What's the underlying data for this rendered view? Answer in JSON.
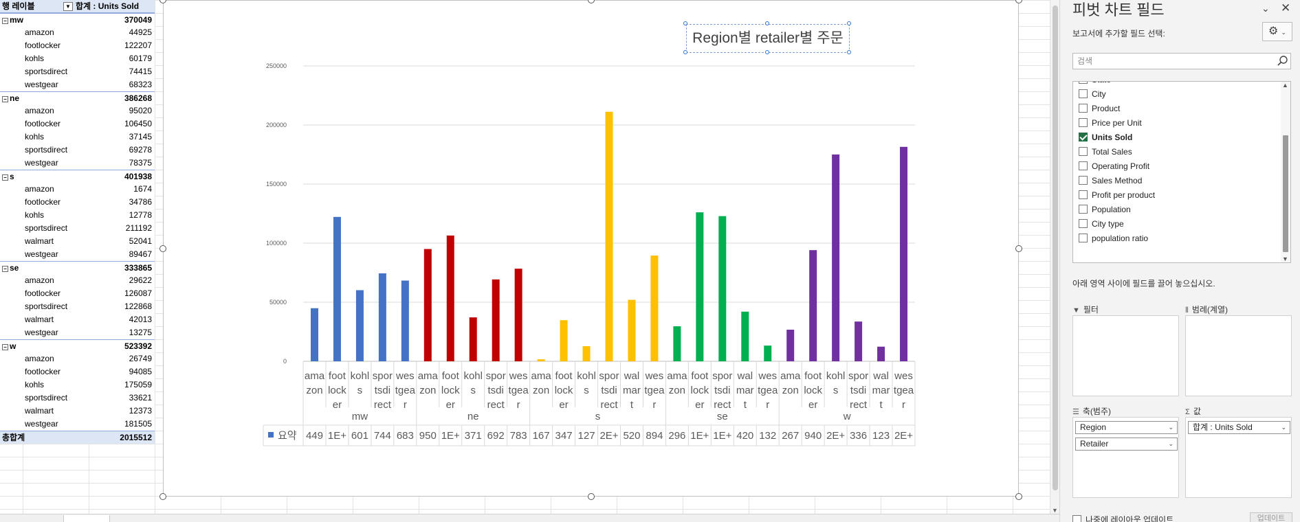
{
  "pivot": {
    "header_label": "행 레이블",
    "header_value": "합계 : Units Sold",
    "regions": [
      {
        "name": "mw",
        "total": "370049",
        "items": [
          {
            "name": "amazon",
            "value": "44925"
          },
          {
            "name": "footlocker",
            "value": "122207"
          },
          {
            "name": "kohls",
            "value": "60179"
          },
          {
            "name": "sportsdirect",
            "value": "74415"
          },
          {
            "name": "westgear",
            "value": "68323"
          }
        ]
      },
      {
        "name": "ne",
        "total": "386268",
        "items": [
          {
            "name": "amazon",
            "value": "95020"
          },
          {
            "name": "footlocker",
            "value": "106450"
          },
          {
            "name": "kohls",
            "value": "37145"
          },
          {
            "name": "sportsdirect",
            "value": "69278"
          },
          {
            "name": "westgear",
            "value": "78375"
          }
        ]
      },
      {
        "name": "s",
        "total": "401938",
        "items": [
          {
            "name": "amazon",
            "value": "1674"
          },
          {
            "name": "footlocker",
            "value": "34786"
          },
          {
            "name": "kohls",
            "value": "12778"
          },
          {
            "name": "sportsdirect",
            "value": "211192"
          },
          {
            "name": "walmart",
            "value": "52041"
          },
          {
            "name": "westgear",
            "value": "89467"
          }
        ]
      },
      {
        "name": "se",
        "total": "333865",
        "items": [
          {
            "name": "amazon",
            "value": "29622"
          },
          {
            "name": "footlocker",
            "value": "126087"
          },
          {
            "name": "sportsdirect",
            "value": "122868"
          },
          {
            "name": "walmart",
            "value": "42013"
          },
          {
            "name": "westgear",
            "value": "13275"
          }
        ]
      },
      {
        "name": "w",
        "total": "523392",
        "items": [
          {
            "name": "amazon",
            "value": "26749"
          },
          {
            "name": "footlocker",
            "value": "94085"
          },
          {
            "name": "kohls",
            "value": "175059"
          },
          {
            "name": "sportsdirect",
            "value": "33621"
          },
          {
            "name": "walmart",
            "value": "12373"
          },
          {
            "name": "westgear",
            "value": "181505"
          }
        ]
      }
    ],
    "grand_total_label": "총합계",
    "grand_total_value": "2015512"
  },
  "chart_data": {
    "type": "bar",
    "title": "Region별 retailer별 주문",
    "ylim": [
      0,
      250000
    ],
    "yticks": [
      "0",
      "50000",
      "100000",
      "150000",
      "200000",
      "250000"
    ],
    "grid": true,
    "legend_position": "right",
    "groups": [
      {
        "name": "mw",
        "color": "#4472c4",
        "categories": [
          {
            "label": "amazon",
            "wrap": [
              "ama",
              "zon"
            ],
            "value": 44925,
            "table": "449"
          },
          {
            "label": "footlocker",
            "wrap": [
              "foot",
              "lock",
              "er"
            ],
            "value": 122207,
            "table": "1E+"
          },
          {
            "label": "kohls",
            "wrap": [
              "kohl",
              "s"
            ],
            "value": 60179,
            "table": "601"
          },
          {
            "label": "sportsdirect",
            "wrap": [
              "spor",
              "tsdi",
              "rect"
            ],
            "value": 74415,
            "table": "744"
          },
          {
            "label": "westgear",
            "wrap": [
              "wes",
              "tgea",
              "r"
            ],
            "value": 68323,
            "table": "683"
          }
        ]
      },
      {
        "name": "ne",
        "color": "#c00000",
        "categories": [
          {
            "label": "amazon",
            "wrap": [
              "ama",
              "zon"
            ],
            "value": 95020,
            "table": "950"
          },
          {
            "label": "footlocker",
            "wrap": [
              "foot",
              "lock",
              "er"
            ],
            "value": 106450,
            "table": "1E+"
          },
          {
            "label": "kohls",
            "wrap": [
              "kohl",
              "s"
            ],
            "value": 37145,
            "table": "371"
          },
          {
            "label": "sportsdirect",
            "wrap": [
              "spor",
              "tsdi",
              "rect"
            ],
            "value": 69278,
            "table": "692"
          },
          {
            "label": "westgear",
            "wrap": [
              "wes",
              "tgea",
              "r"
            ],
            "value": 78375,
            "table": "783"
          }
        ]
      },
      {
        "name": "s",
        "color": "#ffc000",
        "categories": [
          {
            "label": "amazon",
            "wrap": [
              "ama",
              "zon"
            ],
            "value": 1674,
            "table": "167"
          },
          {
            "label": "footlocker",
            "wrap": [
              "foot",
              "lock",
              "er"
            ],
            "value": 34786,
            "table": "347"
          },
          {
            "label": "kohls",
            "wrap": [
              "kohl",
              "s"
            ],
            "value": 12778,
            "table": "127"
          },
          {
            "label": "sportsdirect",
            "wrap": [
              "spor",
              "tsdi",
              "rect"
            ],
            "value": 211192,
            "table": "2E+"
          },
          {
            "label": "walmart",
            "wrap": [
              "wal",
              "mar",
              "t"
            ],
            "value": 52041,
            "table": "520"
          },
          {
            "label": "westgear",
            "wrap": [
              "wes",
              "tgea",
              "r"
            ],
            "value": 89467,
            "table": "894"
          }
        ]
      },
      {
        "name": "se",
        "color": "#00b050",
        "categories": [
          {
            "label": "amazon",
            "wrap": [
              "ama",
              "zon"
            ],
            "value": 29622,
            "table": "296"
          },
          {
            "label": "footlocker",
            "wrap": [
              "foot",
              "lock",
              "er"
            ],
            "value": 126087,
            "table": "1E+"
          },
          {
            "label": "sportsdirect",
            "wrap": [
              "spor",
              "tsdi",
              "rect"
            ],
            "value": 122868,
            "table": "1E+"
          },
          {
            "label": "walmart",
            "wrap": [
              "wal",
              "mar",
              "t"
            ],
            "value": 42013,
            "table": "420"
          },
          {
            "label": "westgear",
            "wrap": [
              "wes",
              "tgea",
              "r"
            ],
            "value": 13275,
            "table": "132"
          }
        ]
      },
      {
        "name": "w",
        "color": "#7030a0",
        "categories": [
          {
            "label": "amazon",
            "wrap": [
              "ama",
              "zon"
            ],
            "value": 26749,
            "table": "267"
          },
          {
            "label": "footlocker",
            "wrap": [
              "foot",
              "lock",
              "er"
            ],
            "value": 94085,
            "table": "940"
          },
          {
            "label": "kohls",
            "wrap": [
              "kohl",
              "s"
            ],
            "value": 175059,
            "table": "2E+"
          },
          {
            "label": "sportsdirect",
            "wrap": [
              "spor",
              "tsdi",
              "rect"
            ],
            "value": 33621,
            "table": "336"
          },
          {
            "label": "walmart",
            "wrap": [
              "wal",
              "mar",
              "t"
            ],
            "value": 12373,
            "table": "123"
          },
          {
            "label": "westgear",
            "wrap": [
              "wes",
              "tgea",
              "r"
            ],
            "value": 181505,
            "table": "2E+"
          }
        ]
      }
    ],
    "table_series_label": "요약",
    "table_series_color": "#4472c4"
  },
  "panel": {
    "title": "피벗 차트 필드",
    "subtitle": "보고서에 추가할 필드 선택:",
    "search_placeholder": "검색",
    "fields": [
      {
        "name": "State",
        "checked": false,
        "partial": true
      },
      {
        "name": "City",
        "checked": false
      },
      {
        "name": "Product",
        "checked": false
      },
      {
        "name": "Price per Unit",
        "checked": false
      },
      {
        "name": "Units Sold",
        "checked": true
      },
      {
        "name": "Total Sales",
        "checked": false
      },
      {
        "name": "Operating Profit",
        "checked": false
      },
      {
        "name": "Sales Method",
        "checked": false
      },
      {
        "name": "Profit per product",
        "checked": false
      },
      {
        "name": "Population",
        "checked": false
      },
      {
        "name": "City type",
        "checked": false
      },
      {
        "name": "population ratio",
        "checked": false
      }
    ],
    "drag_hint": "아래 영역 사이에 필드를 끌어 놓으십시오.",
    "areas": {
      "filter_label": "필터",
      "legend_label": "범례(계열)",
      "axis_label": "축(범주)",
      "values_label": "값",
      "axis_items": [
        "Region",
        "Retailer"
      ],
      "value_items": [
        "합계 : Units Sold"
      ]
    },
    "defer_label": "나중에 레이아웃 업데이트",
    "update_label": "업데이트"
  },
  "icons": {
    "search": "search-icon",
    "gear": "gear-icon",
    "close": "close-icon",
    "collapse": "chevron-down-icon"
  }
}
